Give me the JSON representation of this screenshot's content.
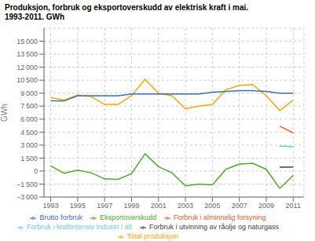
{
  "chart_data": {
    "type": "line",
    "title": "Produksjon, forbruk og eksportoverskudd av elektrisk kraft i mai.",
    "subtitle": "1993-2011. GWh",
    "y_label": "GWh",
    "x": [
      1993,
      1994,
      1995,
      1996,
      1997,
      1998,
      1999,
      2000,
      2001,
      2002,
      2003,
      2004,
      2005,
      2006,
      2007,
      2008,
      2009,
      2010,
      2011
    ],
    "series": [
      {
        "name": "Total produksjon",
        "color": "#f5a800",
        "values": [
          8500,
          8200,
          8800,
          8600,
          7700,
          7700,
          8700,
          10600,
          9000,
          8700,
          7200,
          7500,
          7700,
          9400,
          9900,
          10000,
          8700,
          7000,
          8200
        ]
      },
      {
        "name": "Brutto forbruk",
        "color": "#3c6eb4",
        "values": [
          8100,
          8100,
          8700,
          8700,
          8700,
          8700,
          8900,
          8900,
          8900,
          8900,
          8900,
          8900,
          9100,
          9200,
          9300,
          9300,
          9200,
          9000,
          9000
        ]
      },
      {
        "name": "Forbruk i alminnelig forsyning",
        "color": "#e06030",
        "values": [
          null,
          null,
          null,
          null,
          null,
          null,
          null,
          null,
          null,
          null,
          null,
          null,
          null,
          null,
          null,
          null,
          null,
          5200,
          4400
        ]
      },
      {
        "name": "Forbruk i kraftintensiv industri i alt",
        "color": "#70c8d8",
        "values": [
          null,
          null,
          null,
          null,
          null,
          null,
          null,
          null,
          null,
          null,
          null,
          null,
          null,
          null,
          null,
          null,
          null,
          2900,
          2800
        ]
      },
      {
        "name": "Forbruk i utvinning av råolje og naturgass",
        "color": "#404040",
        "values": [
          null,
          null,
          null,
          null,
          null,
          null,
          null,
          null,
          null,
          null,
          null,
          null,
          null,
          null,
          null,
          null,
          null,
          450,
          470
        ]
      },
      {
        "name": "Eksportoverskudd",
        "color": "#50a830",
        "values": [
          600,
          -250,
          100,
          -200,
          -900,
          -950,
          -300,
          2000,
          500,
          -200,
          -1700,
          -1500,
          -1600,
          200,
          800,
          900,
          200,
          -2000,
          -500
        ]
      }
    ],
    "xlim": [
      1992.5,
      2011.8
    ],
    "xticks": [
      1993,
      1995,
      1997,
      1999,
      2001,
      2003,
      2005,
      2007,
      2009,
      2011
    ],
    "ylim": [
      -3000,
      16500
    ],
    "yticks": [
      {
        "value": -3000,
        "label": "−3 000"
      },
      {
        "value": -1500,
        "label": "−1 500"
      },
      0,
      {
        "value": 1500,
        "label": "1 500"
      },
      {
        "value": 3000,
        "label": "3 000"
      },
      {
        "value": 4500,
        "label": "4 500"
      },
      {
        "value": 6000,
        "label": "6 000"
      },
      {
        "value": 7500,
        "label": "7 500"
      },
      {
        "value": 9000,
        "label": "9 000"
      },
      {
        "value": 10500,
        "label": "10 500"
      },
      {
        "value": 12000,
        "label": "12 000"
      },
      {
        "value": 13500,
        "label": "13 500"
      },
      {
        "value": 15000,
        "label": "15 000"
      }
    ],
    "grid": true,
    "legend": "bottom"
  }
}
